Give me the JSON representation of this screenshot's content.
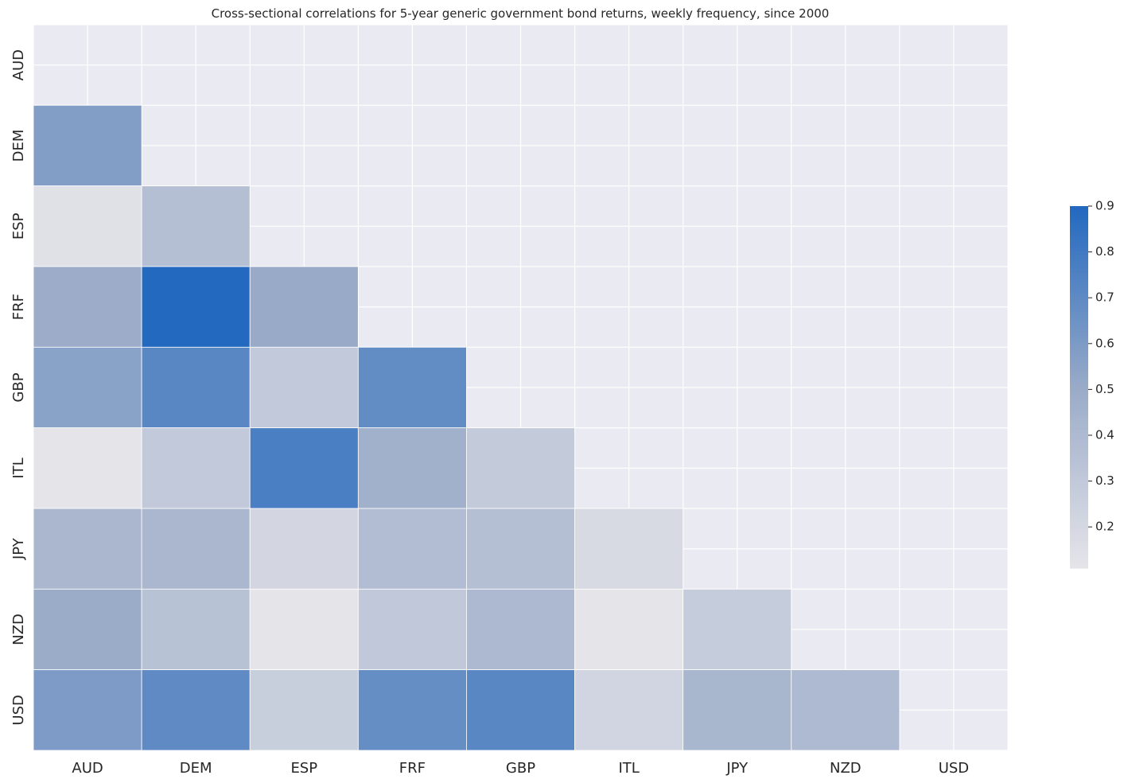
{
  "chart_data": {
    "type": "heatmap",
    "title": "Cross-sectional correlations for 5-year generic government bond returns, weekly frequency, since 2000",
    "xlabel": "",
    "ylabel": "",
    "x_categories": [
      "AUD",
      "DEM",
      "ESP",
      "FRF",
      "GBP",
      "ITL",
      "JPY",
      "NZD",
      "USD"
    ],
    "y_categories": [
      "AUD",
      "DEM",
      "ESP",
      "FRF",
      "GBP",
      "ITL",
      "JPY",
      "NZD",
      "USD"
    ],
    "mask": "upper-triangle-including-diagonal",
    "values": [
      [
        null,
        null,
        null,
        null,
        null,
        null,
        null,
        null,
        null
      ],
      [
        0.58,
        null,
        null,
        null,
        null,
        null,
        null,
        null,
        null
      ],
      [
        0.14,
        0.37,
        null,
        null,
        null,
        null,
        null,
        null,
        null
      ],
      [
        0.49,
        0.9,
        0.51,
        null,
        null,
        null,
        null,
        null,
        null
      ],
      [
        0.56,
        0.72,
        0.3,
        0.69,
        null,
        null,
        null,
        null,
        null
      ],
      [
        0.12,
        0.3,
        0.77,
        0.47,
        0.29,
        null,
        null,
        null,
        null
      ],
      [
        0.42,
        0.42,
        0.21,
        0.38,
        0.37,
        0.19,
        null,
        null,
        null
      ],
      [
        0.5,
        0.35,
        0.12,
        0.31,
        0.41,
        0.12,
        0.28,
        null,
        null
      ],
      [
        0.6,
        0.7,
        0.27,
        0.68,
        0.72,
        0.22,
        0.43,
        0.4,
        null
      ]
    ],
    "colorbar": {
      "min": 0.11,
      "max": 0.9,
      "ticks": [
        0.2,
        0.3,
        0.4,
        0.5,
        0.6,
        0.7,
        0.8,
        0.9
      ],
      "tick_labels": [
        "0.2",
        "0.3",
        "0.4",
        "0.5",
        "0.6",
        "0.7",
        "0.8",
        "0.9"
      ],
      "color_low": "#e6e5ea",
      "color_mid": "#9aabc8",
      "color_high": "#2369c0"
    },
    "background_color": "#eaeaf2",
    "grid": true
  }
}
